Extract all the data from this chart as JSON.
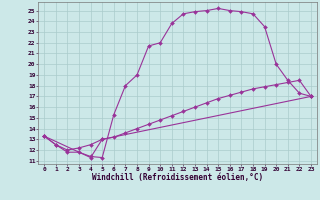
{
  "xlabel": "Windchill (Refroidissement éolien,°C)",
  "xlim": [
    -0.5,
    23.5
  ],
  "ylim": [
    10.7,
    25.8
  ],
  "xticks": [
    0,
    1,
    2,
    3,
    4,
    5,
    6,
    7,
    8,
    9,
    10,
    11,
    12,
    13,
    14,
    15,
    16,
    17,
    18,
    19,
    20,
    21,
    22,
    23
  ],
  "yticks": [
    11,
    12,
    13,
    14,
    15,
    16,
    17,
    18,
    19,
    20,
    21,
    22,
    23,
    24,
    25
  ],
  "bg_color": "#cce8e8",
  "grid_color": "#aacccc",
  "line_color": "#993399",
  "line1_x": [
    0,
    1,
    2,
    3,
    4,
    5,
    6,
    7,
    8,
    9,
    10,
    11,
    12,
    13,
    14,
    15,
    16,
    17,
    18,
    19,
    20,
    21,
    22,
    23
  ],
  "line1_y": [
    13.3,
    12.5,
    11.8,
    11.8,
    11.4,
    11.3,
    15.3,
    18.0,
    19.0,
    21.7,
    22.0,
    23.8,
    24.7,
    24.9,
    25.0,
    25.2,
    25.0,
    24.9,
    24.7,
    23.5,
    20.0,
    18.5,
    17.3,
    17.0
  ],
  "line2_x": [
    0,
    1,
    2,
    3,
    4,
    5,
    6,
    7,
    8,
    9,
    10,
    11,
    12,
    13,
    14,
    15,
    16,
    17,
    18,
    19,
    20,
    21,
    22,
    23
  ],
  "line2_y": [
    13.3,
    12.5,
    12.0,
    12.2,
    12.5,
    13.0,
    13.2,
    13.6,
    14.0,
    14.4,
    14.8,
    15.2,
    15.6,
    16.0,
    16.4,
    16.8,
    17.1,
    17.4,
    17.7,
    17.9,
    18.1,
    18.3,
    18.5,
    17.0
  ],
  "line3_x": [
    0,
    4,
    5,
    23
  ],
  "line3_y": [
    13.3,
    11.3,
    13.0,
    17.0
  ],
  "marker": "D",
  "markersize": 2.0,
  "linewidth": 0.8,
  "tick_fontsize": 4.5,
  "label_fontsize": 5.5
}
